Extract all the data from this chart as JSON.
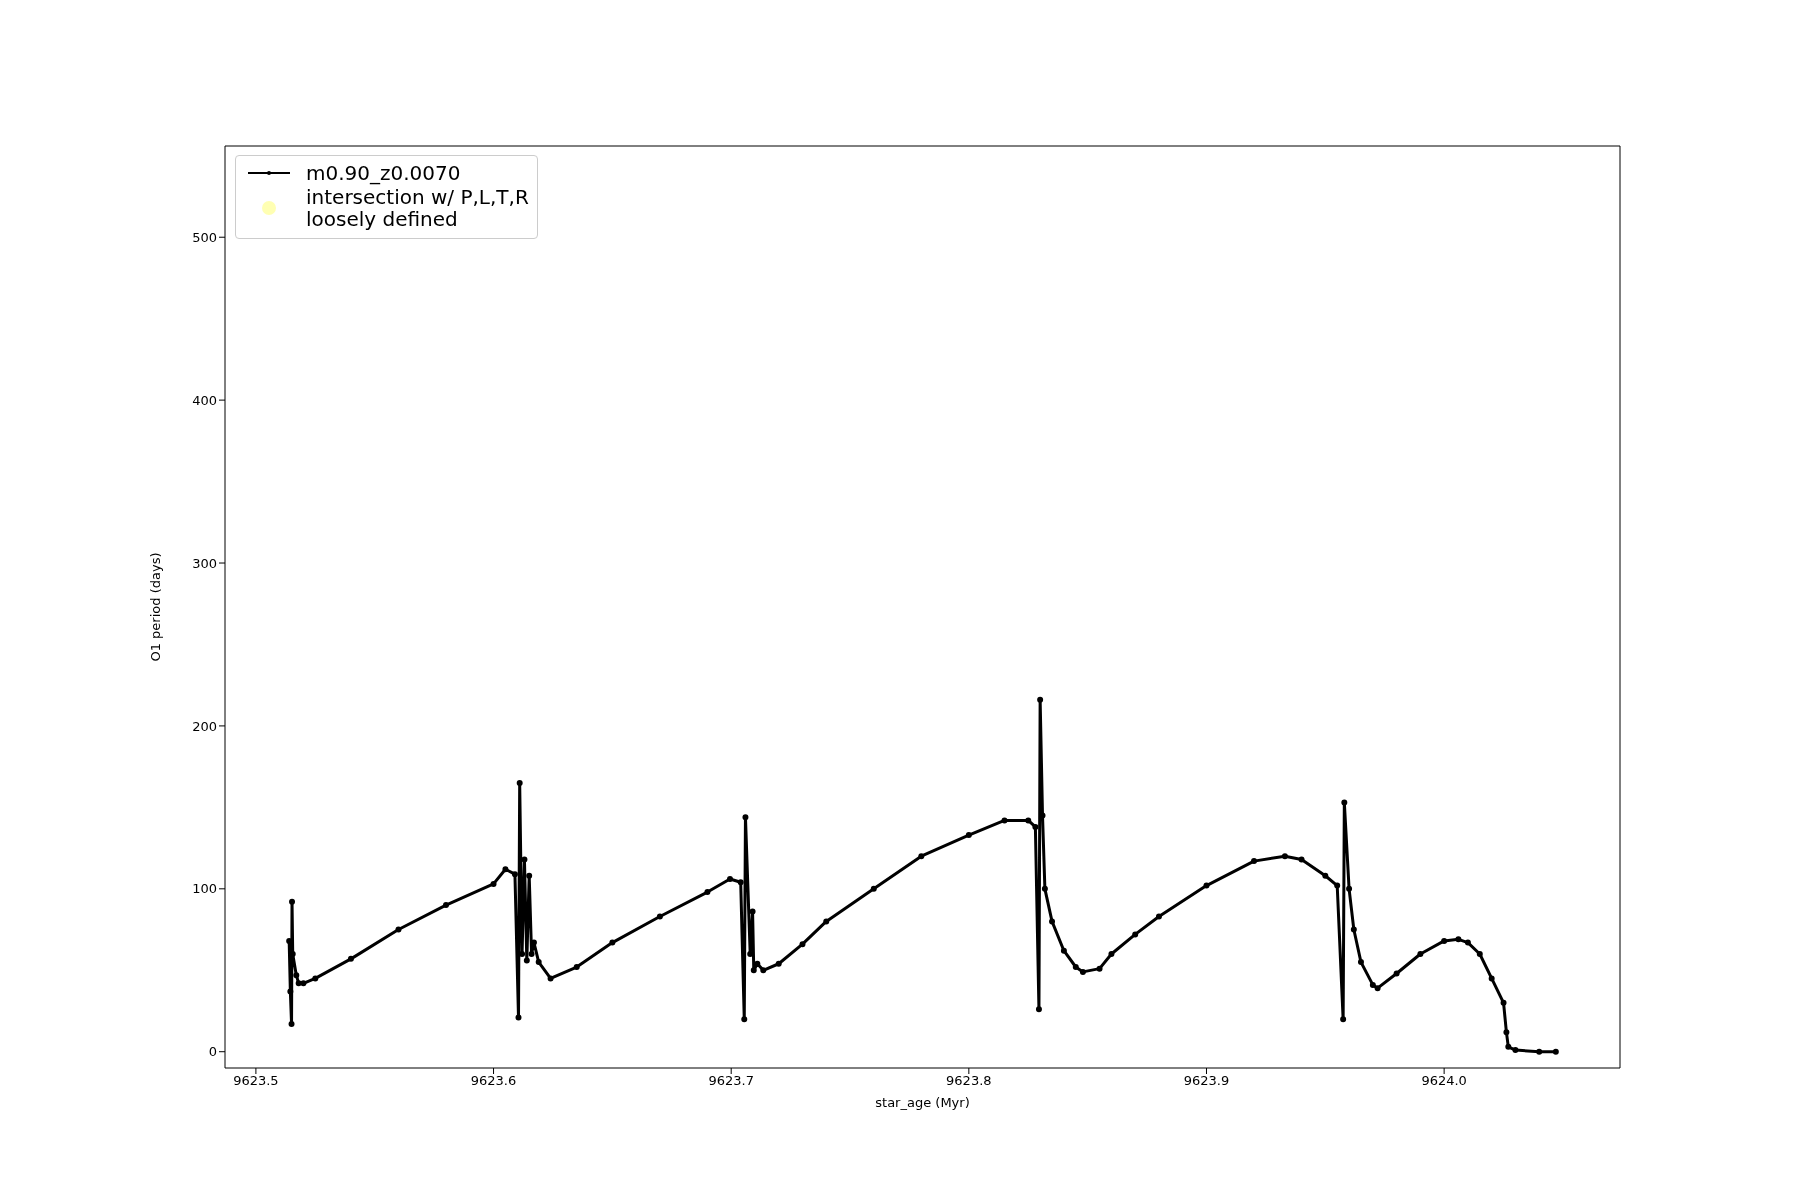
{
  "chart_data": {
    "type": "line",
    "xlabel": "star_age (Myr)",
    "ylabel": "O1 period (days)",
    "xlim": [
      9623.487,
      9624.074
    ],
    "xticks": [
      9623.5,
      9623.6,
      9623.7,
      9623.8,
      9623.9,
      {
        "value": 9624,
        "label": "9624.0"
      }
    ],
    "ylim": [
      -10,
      556
    ],
    "yticks": [
      0,
      100,
      200,
      300,
      400,
      500
    ],
    "grid": false,
    "legend": "top left",
    "marker": "circle",
    "line_style": "solid",
    "series": [
      {
        "name": "m0.90_z0.0070",
        "color": "#000000",
        "x": [
          9623.514,
          9623.5145,
          9623.515,
          9623.5152,
          9623.5155,
          9623.517,
          9623.518,
          9623.52,
          9623.525,
          9623.54,
          9623.56,
          9623.58,
          9623.6,
          9623.605,
          9623.609,
          9623.6105,
          9623.611,
          9623.612,
          9623.613,
          9623.614,
          9623.615,
          9623.616,
          9623.617,
          9623.619,
          9623.624,
          9623.635,
          9623.65,
          9623.67,
          9623.69,
          9623.6995,
          9623.704,
          9623.7055,
          9623.706,
          9623.708,
          9623.709,
          9623.7095,
          9623.711,
          9623.7135,
          9623.72,
          9623.73,
          9623.74,
          9623.76,
          9623.78,
          9623.8,
          9623.815,
          9623.825,
          9623.828,
          9623.8295,
          9623.83,
          9623.831,
          9623.832,
          9623.835,
          9623.84,
          9623.845,
          9623.848,
          9623.855,
          9623.86,
          9623.87,
          9623.88,
          9623.9,
          9623.92,
          9623.933,
          9623.94,
          9623.95,
          9623.955,
          9623.9575,
          9623.958,
          9623.96,
          9623.962,
          9623.965,
          9623.97,
          9623.972,
          9623.98,
          9623.99,
          9624.0,
          9624.006,
          9624.01,
          9624.015,
          9624.02,
          9624.025,
          9624.0262,
          9624.027,
          9624.03,
          9624.04,
          9624.047
        ],
        "values": [
          68,
          37,
          17,
          92,
          60,
          47,
          42,
          42,
          45,
          57,
          75,
          90,
          103,
          112,
          109,
          21,
          165,
          60,
          118,
          56,
          108,
          60,
          67,
          55,
          45,
          52,
          67,
          83,
          98,
          106,
          104,
          20,
          144,
          60,
          86,
          50,
          54,
          50,
          54,
          66,
          80,
          100,
          120,
          133,
          142,
          142,
          138,
          26,
          216,
          145,
          100,
          80,
          62,
          52,
          49,
          51,
          60,
          72,
          83,
          102,
          117,
          120,
          118,
          108,
          102,
          20,
          153,
          100,
          75,
          55,
          41,
          39,
          48,
          60,
          68,
          69,
          67,
          60,
          45,
          30,
          12,
          3,
          1,
          0,
          0
        ]
      },
      {
        "name": "intersection w/ P,L,T,R\nloosely defined",
        "type": "scatter",
        "color": "#ffffb3"
      }
    ]
  }
}
